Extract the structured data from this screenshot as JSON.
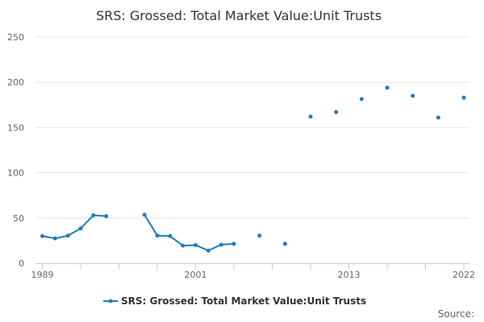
{
  "chart_data": {
    "type": "line",
    "title": "SRS: Grossed: Total Market Value:Unit Trusts",
    "xlabel": "",
    "ylabel": "",
    "xlim": [
      1989,
      2022
    ],
    "ylim": [
      0,
      250
    ],
    "x_ticks": [
      1989,
      2001,
      2013,
      2022
    ],
    "y_ticks": [
      0,
      50,
      100,
      150,
      200,
      250
    ],
    "grid": true,
    "legend_position": "bottom",
    "series": [
      {
        "name": "SRS: Grossed: Total Market Value:Unit Trusts",
        "color": "#1f7bc0",
        "points": [
          [
            1989,
            30
          ],
          [
            1990,
            27.5
          ],
          [
            1991,
            30.5
          ],
          [
            1992,
            38.5
          ],
          [
            1993,
            53
          ],
          [
            1994,
            52
          ],
          [
            1995,
            null
          ],
          [
            1996,
            null
          ],
          [
            1997,
            53.5
          ],
          [
            1998,
            30.5
          ],
          [
            1999,
            30
          ],
          [
            2000,
            19.5
          ],
          [
            2001,
            20
          ],
          [
            2002,
            14
          ],
          [
            2003,
            20.5
          ],
          [
            2004,
            21.5
          ],
          [
            2005,
            null
          ],
          [
            2006,
            30.5
          ],
          [
            2007,
            null
          ],
          [
            2008,
            21.5
          ],
          [
            2009,
            null
          ],
          [
            2010,
            162
          ],
          [
            2011,
            null
          ],
          [
            2012,
            167
          ],
          [
            2013,
            null
          ],
          [
            2014,
            181.5
          ],
          [
            2015,
            null
          ],
          [
            2016,
            194
          ],
          [
            2017,
            null
          ],
          [
            2018,
            185
          ],
          [
            2019,
            null
          ],
          [
            2020,
            161
          ],
          [
            2021,
            null
          ],
          [
            2022,
            183
          ]
        ]
      }
    ]
  },
  "source_label": "Source:"
}
